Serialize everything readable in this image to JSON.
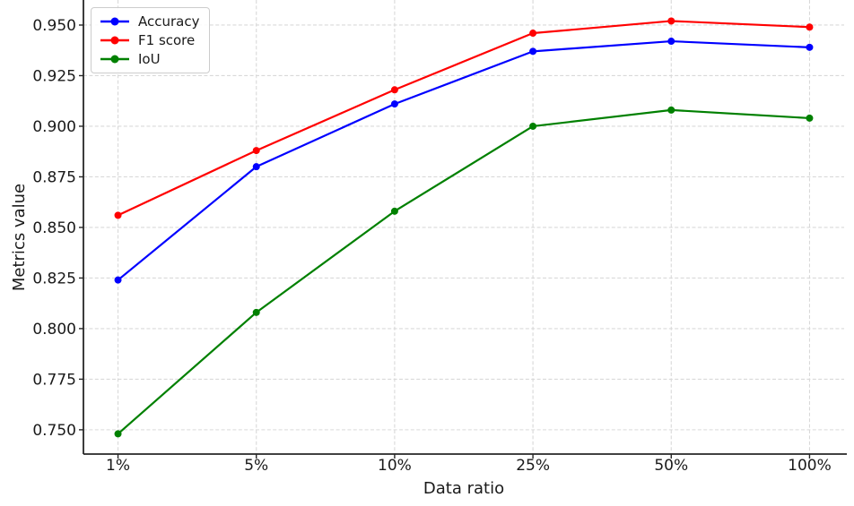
{
  "chart_data": {
    "type": "line",
    "title": "",
    "xlabel": "Data ratio",
    "ylabel": "Metrics value",
    "categories": [
      "1%",
      "5%",
      "10%",
      "25%",
      "50%",
      "100%"
    ],
    "series": [
      {
        "name": "Accuracy",
        "color": "#0000ff",
        "values": [
          0.824,
          0.88,
          0.911,
          0.937,
          0.942,
          0.939
        ]
      },
      {
        "name": "F1 score",
        "color": "#ff0000",
        "values": [
          0.856,
          0.888,
          0.918,
          0.946,
          0.952,
          0.949
        ]
      },
      {
        "name": "IoU",
        "color": "#008000",
        "values": [
          0.748,
          0.808,
          0.858,
          0.9,
          0.908,
          0.904
        ]
      }
    ],
    "ylim": [
      0.738,
      0.9615
    ],
    "yticks": [
      0.75,
      0.775,
      0.8,
      0.825,
      0.85,
      0.875,
      0.9,
      0.925,
      0.95
    ],
    "ytick_labels": [
      "0.750",
      "0.775",
      "0.800",
      "0.825",
      "0.850",
      "0.875",
      "0.900",
      "0.925",
      "0.950"
    ],
    "grid": true,
    "legend_position": "upper left",
    "colors": {
      "grid": "#d9d9d9",
      "axis": "#262626",
      "text": "#1a1a1a",
      "background": "#ffffff"
    }
  }
}
